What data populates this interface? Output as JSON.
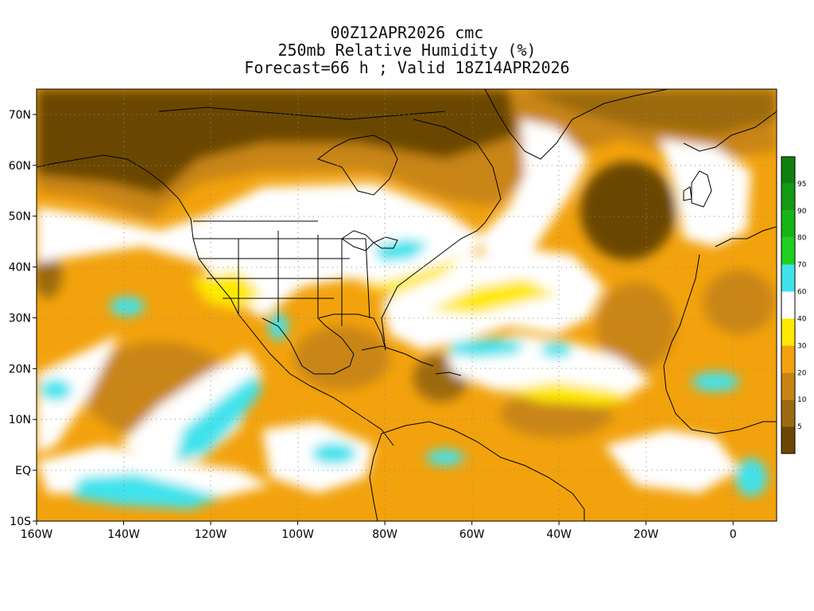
{
  "title": {
    "line1": "00Z12APR2026 cmc",
    "line2": "250mb Relative Humidity (%)",
    "line3": "Forecast=66 h ; Valid 18Z14APR2026"
  },
  "map": {
    "lon_range": [
      -160,
      10
    ],
    "lat_range": [
      -10,
      75
    ],
    "lon_ticks": [
      {
        "value": -160,
        "label": "160W"
      },
      {
        "value": -140,
        "label": "140W"
      },
      {
        "value": -120,
        "label": "120W"
      },
      {
        "value": -100,
        "label": "100W"
      },
      {
        "value": -80,
        "label": "80W"
      },
      {
        "value": -60,
        "label": "60W"
      },
      {
        "value": -40,
        "label": "40W"
      },
      {
        "value": -20,
        "label": "20W"
      },
      {
        "value": 0,
        "label": "0"
      }
    ],
    "lat_ticks": [
      {
        "value": 70,
        "label": "70N"
      },
      {
        "value": 60,
        "label": "60N"
      },
      {
        "value": 50,
        "label": "50N"
      },
      {
        "value": 40,
        "label": "40N"
      },
      {
        "value": 30,
        "label": "30N"
      },
      {
        "value": 20,
        "label": "20N"
      },
      {
        "value": 10,
        "label": "10N"
      },
      {
        "value": 0,
        "label": "EQ"
      },
      {
        "value": -10,
        "label": "10S"
      }
    ],
    "grid_lines": "dotted",
    "colorbar": {
      "labels": [
        "5",
        "10",
        "20",
        "30",
        "40",
        "60",
        "70",
        "80",
        "90",
        "95"
      ],
      "colors": [
        "#6b4705",
        "#9c6a0e",
        "#c98513",
        "#f2a20c",
        "#ffe800",
        "#ffffff",
        "#3fe3ed",
        "#1fd01f",
        "#16b516",
        "#139a13",
        "#0f800f"
      ]
    }
  }
}
